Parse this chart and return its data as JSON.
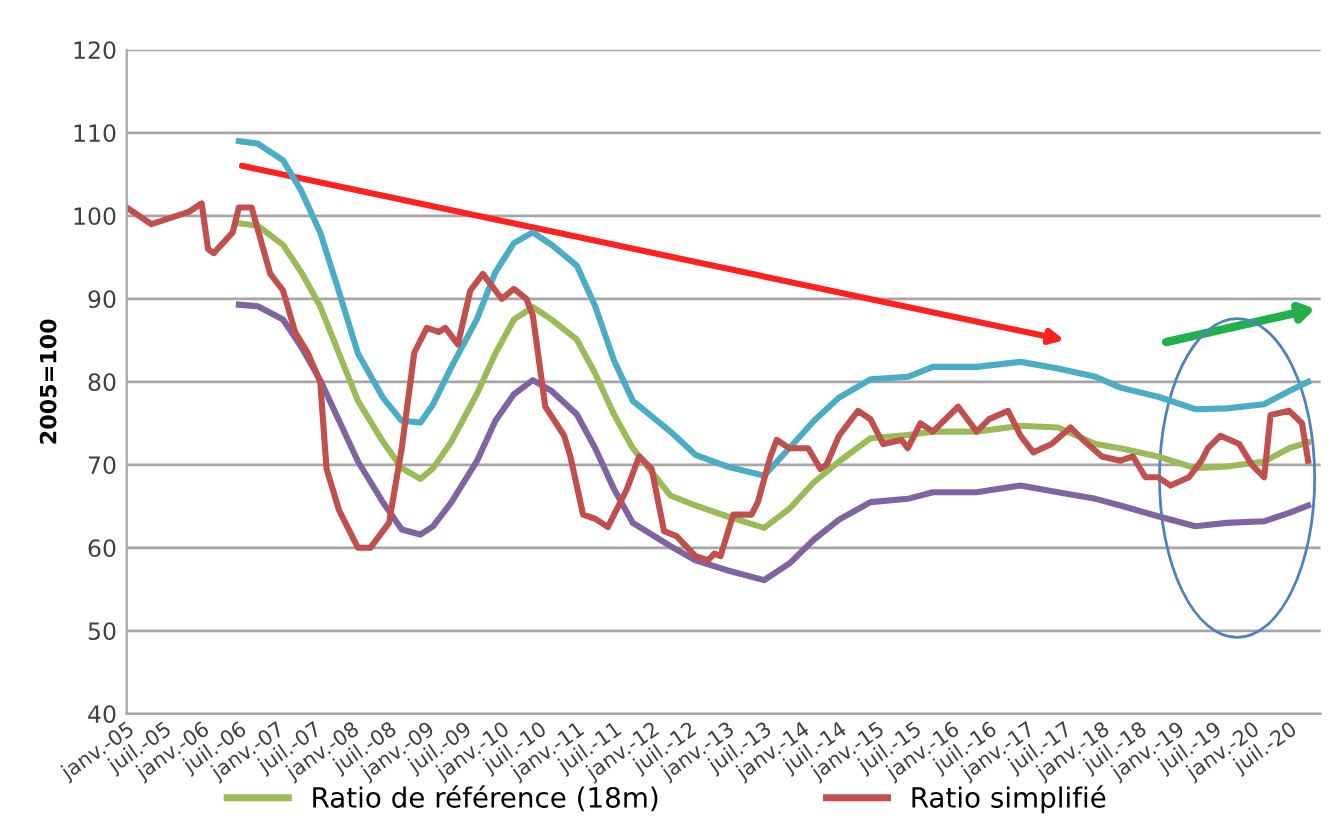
{
  "chart_data": {
    "type": "line",
    "ylabel": "2005=100",
    "ylim": [
      40,
      120
    ],
    "yticks": [
      40,
      50,
      60,
      70,
      80,
      90,
      100,
      110,
      120
    ],
    "grid": "y",
    "legend": "bottom",
    "line_style": "solid",
    "marker": "none",
    "xlim": [
      "2005-01",
      "2020-12"
    ],
    "xticks": [
      {
        "value": "2005-01",
        "label": "janv.-05"
      },
      {
        "value": "2005-07",
        "label": "juil.-05"
      },
      {
        "value": "2006-01",
        "label": "janv.-06"
      },
      {
        "value": "2006-07",
        "label": "juil.-06"
      },
      {
        "value": "2007-01",
        "label": "janv.-07"
      },
      {
        "value": "2007-07",
        "label": "juil.-07"
      },
      {
        "value": "2008-01",
        "label": "janv.-08"
      },
      {
        "value": "2008-07",
        "label": "juil.-08"
      },
      {
        "value": "2009-01",
        "label": "janv.-09"
      },
      {
        "value": "2009-07",
        "label": "juil.-09"
      },
      {
        "value": "2010-01",
        "label": "janv.-10"
      },
      {
        "value": "2010-07",
        "label": "juil.-10"
      },
      {
        "value": "2011-01",
        "label": "janv.-11"
      },
      {
        "value": "2011-07",
        "label": "juil.-11"
      },
      {
        "value": "2012-01",
        "label": "janv.-12"
      },
      {
        "value": "2012-07",
        "label": "juil.-12"
      },
      {
        "value": "2013-01",
        "label": "janv.-13"
      },
      {
        "value": "2013-07",
        "label": "juil.-13"
      },
      {
        "value": "2014-01",
        "label": "janv.-14"
      },
      {
        "value": "2014-07",
        "label": "juil.-14"
      },
      {
        "value": "2015-01",
        "label": "janv.-15"
      },
      {
        "value": "2015-07",
        "label": "juil.-15"
      },
      {
        "value": "2016-01",
        "label": "janv.-16"
      },
      {
        "value": "2016-07",
        "label": "juil.-16"
      },
      {
        "value": "2017-01",
        "label": "janv.-17"
      },
      {
        "value": "2017-07",
        "label": "juil.-17"
      },
      {
        "value": "2018-01",
        "label": "janv.-18"
      },
      {
        "value": "2018-07",
        "label": "juil.-18"
      },
      {
        "value": "2019-01",
        "label": "janv.-19"
      },
      {
        "value": "2019-07",
        "label": "juil.-19"
      },
      {
        "value": "2020-01",
        "label": "janv.-20"
      },
      {
        "value": "2020-07",
        "label": "juil.-20"
      }
    ],
    "series": [
      {
        "color": "#4bacc6",
        "x": [
          "2006-07",
          "2006-10",
          "2007-02",
          "2007-05",
          "2007-08",
          "2007-11",
          "2008-02",
          "2008-06",
          "2008-09",
          "2008-12",
          "2009-02",
          "2009-05",
          "2009-09",
          "2009-12",
          "2010-03",
          "2010-06",
          "2010-09",
          "2011-01",
          "2011-04",
          "2011-07",
          "2011-10",
          "2012-04",
          "2012-08",
          "2013-01",
          "2013-07",
          "2013-11",
          "2014-03",
          "2014-07",
          "2014-12",
          "2015-06",
          "2015-10",
          "2016-05",
          "2016-12",
          "2017-06",
          "2017-12",
          "2018-04",
          "2018-10",
          "2019-04",
          "2019-09",
          "2020-03",
          "2020-07",
          "2020-10"
        ],
        "values": [
          109,
          108.7,
          106.7,
          103,
          98,
          90.8,
          83.4,
          78.1,
          75.3,
          75.1,
          77.3,
          81.8,
          87.5,
          93.2,
          96.7,
          98,
          96.5,
          94,
          89.1,
          82.6,
          77.7,
          74,
          71.2,
          69.8,
          68.7,
          72,
          75.3,
          78.1,
          80.3,
          80.6,
          81.8,
          81.8,
          82.4,
          81.6,
          80.6,
          79.3,
          78.2,
          76.7,
          76.8,
          77.3,
          78.9,
          80
        ]
      },
      {
        "color": "#8064a2",
        "x": [
          "2006-07",
          "2006-10",
          "2007-02",
          "2007-05",
          "2007-08",
          "2007-11",
          "2008-02",
          "2008-06",
          "2008-09",
          "2008-12",
          "2009-02",
          "2009-05",
          "2009-09",
          "2009-12",
          "2010-03",
          "2010-06",
          "2010-09",
          "2011-01",
          "2011-04",
          "2011-07",
          "2011-10",
          "2012-04",
          "2012-08",
          "2013-01",
          "2013-07",
          "2013-11",
          "2014-03",
          "2014-07",
          "2014-12",
          "2015-06",
          "2015-10",
          "2016-05",
          "2016-12",
          "2017-06",
          "2017-12",
          "2018-04",
          "2018-10",
          "2019-04",
          "2019-09",
          "2020-03",
          "2020-07",
          "2020-10"
        ],
        "values": [
          89.3,
          89.1,
          87.5,
          84.2,
          80.2,
          75.3,
          70.4,
          65.5,
          62.2,
          61.6,
          62.6,
          65.5,
          70.4,
          75.3,
          78.5,
          80.2,
          78.9,
          76.1,
          72,
          67.1,
          63,
          60.2,
          58.5,
          57.3,
          56.1,
          58.1,
          61,
          63.4,
          65.5,
          65.9,
          66.7,
          66.7,
          67.5,
          66.7,
          65.9,
          65.1,
          63.8,
          62.6,
          63,
          63.2,
          64.2,
          65.1
        ]
      },
      {
        "name": "Ratio de référence (18m)",
        "color": "#9bbb59",
        "x": [
          "2006-07",
          "2006-10",
          "2007-02",
          "2007-05",
          "2007-08",
          "2007-11",
          "2008-02",
          "2008-06",
          "2008-09",
          "2008-12",
          "2009-02",
          "2009-05",
          "2009-09",
          "2009-12",
          "2010-03",
          "2010-06",
          "2010-09",
          "2011-01",
          "2011-04",
          "2011-07",
          "2011-10",
          "2012-04",
          "2012-08",
          "2013-01",
          "2013-07",
          "2013-11",
          "2014-03",
          "2014-07",
          "2014-12",
          "2015-06",
          "2015-10",
          "2016-05",
          "2016-12",
          "2017-06",
          "2017-12",
          "2018-04",
          "2018-10",
          "2019-04",
          "2019-09",
          "2020-03",
          "2020-07",
          "2020-10"
        ],
        "values": [
          99.1,
          98.8,
          96.5,
          93.2,
          89.1,
          83.4,
          77.7,
          72.8,
          69.6,
          68.3,
          69.6,
          72.8,
          78.5,
          83.4,
          87.5,
          89,
          87.5,
          85.1,
          81,
          76.1,
          72,
          66.3,
          65.1,
          63.8,
          62.4,
          64.7,
          67.9,
          70.4,
          73.2,
          73.6,
          74,
          74,
          74.7,
          74.5,
          72.5,
          72,
          71,
          69.6,
          69.8,
          70.4,
          72,
          72.7
        ]
      },
      {
        "name": "Ratio simplifié",
        "color": "#c0504d",
        "x": [
          "2005-01",
          "2005-05",
          "2005-09",
          "2005-11",
          "2006-01",
          "2006-02",
          "2006-03",
          "2006-06",
          "2006-07",
          "2006-09",
          "2006-12",
          "2007-02",
          "2007-04",
          "2007-06",
          "2007-08",
          "2007-09",
          "2007-11",
          "2008-02",
          "2008-04",
          "2008-07",
          "2008-09",
          "2008-11",
          "2009-01",
          "2009-03",
          "2009-04",
          "2009-06",
          "2009-08",
          "2009-10",
          "2009-12",
          "2010-01",
          "2010-03",
          "2010-05",
          "2010-06",
          "2010-08",
          "2010-11",
          "2010-12",
          "2011-02",
          "2011-04",
          "2011-06",
          "2011-09",
          "2011-11",
          "2012-01",
          "2012-03",
          "2012-05",
          "2012-08",
          "2012-10",
          "2012-11",
          "2012-12",
          "2013-02",
          "2013-05",
          "2013-06",
          "2013-08",
          "2013-09",
          "2013-11",
          "2014-02",
          "2014-04",
          "2014-05",
          "2014-07",
          "2014-10",
          "2014-12",
          "2015-02",
          "2015-05",
          "2015-06",
          "2015-08",
          "2015-10",
          "2016-02",
          "2016-05",
          "2016-07",
          "2016-10",
          "2016-12",
          "2017-02",
          "2017-05",
          "2017-08",
          "2017-10",
          "2018-01",
          "2018-04",
          "2018-06",
          "2018-08",
          "2018-10",
          "2018-12",
          "2019-03",
          "2019-05",
          "2019-06",
          "2019-08",
          "2019-11",
          "2020-01",
          "2020-03",
          "2020-04",
          "2020-07",
          "2020-09",
          "2020-10"
        ],
        "values": [
          101,
          99,
          100,
          100.5,
          101.5,
          96,
          95.5,
          98,
          101,
          101,
          93,
          91,
          86,
          83.5,
          80,
          69.5,
          64.5,
          60,
          60,
          63,
          72,
          83.5,
          86.5,
          86,
          86.5,
          84.5,
          91,
          93,
          91,
          90,
          91.2,
          90,
          88,
          77,
          73.5,
          71,
          64,
          63.5,
          62.5,
          67,
          71,
          69.5,
          62,
          61.4,
          59,
          58.5,
          59.3,
          59,
          64,
          64,
          65.5,
          71,
          73,
          72,
          72,
          69.5,
          70,
          73.5,
          76.5,
          75.5,
          72.5,
          73,
          72,
          75,
          74,
          77,
          74,
          75.5,
          76.5,
          73.5,
          71.5,
          72.5,
          74.5,
          73,
          71,
          70.5,
          71,
          68.5,
          68.5,
          67.5,
          68.5,
          70.5,
          72,
          73.5,
          72.5,
          70,
          68.5,
          76,
          76.5,
          75,
          70.5
        ]
      }
    ]
  }
}
